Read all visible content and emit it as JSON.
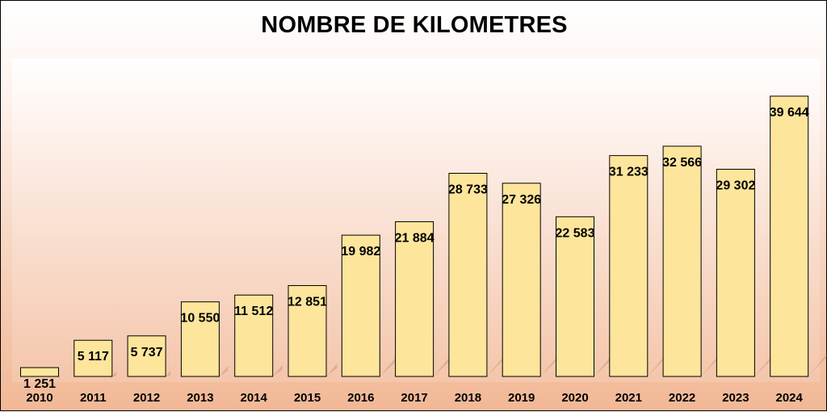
{
  "chart_data": {
    "type": "bar",
    "title": "NOMBRE DE KILOMETRES",
    "xlabel": "",
    "ylabel": "",
    "categories": [
      "2010",
      "2011",
      "2012",
      "2013",
      "2014",
      "2015",
      "2016",
      "2017",
      "2018",
      "2019",
      "2020",
      "2021",
      "2022",
      "2023",
      "2024"
    ],
    "values": [
      1251,
      5117,
      5737,
      10550,
      11512,
      12851,
      19982,
      21884,
      28733,
      27326,
      22583,
      31233,
      32566,
      29302,
      39644
    ],
    "value_labels": [
      "1 251",
      "5 117",
      "5 737",
      "10 550",
      "11 512",
      "12 851",
      "19 982",
      "21 884",
      "28 733",
      "27 326",
      "22 583",
      "31 233",
      "32 566",
      "29 302",
      "39 644"
    ],
    "ylim": [
      0,
      45000
    ],
    "grid": false,
    "legend": "none",
    "colors": {
      "bar": "#fde59c",
      "bar_border": "#000000",
      "background_top": "#ffffff",
      "background_bottom": "#f2b896"
    }
  }
}
